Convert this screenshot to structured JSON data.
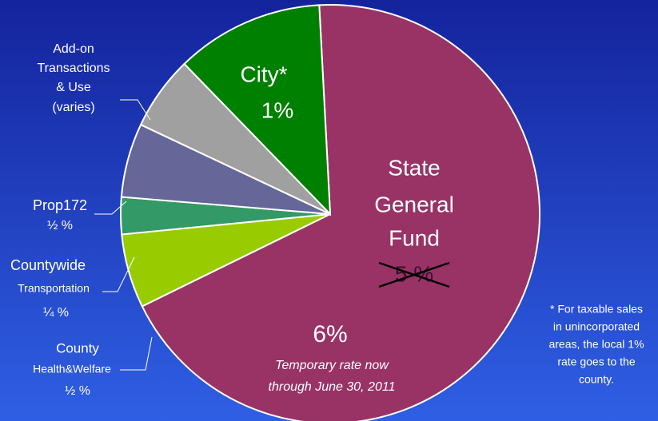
{
  "chart_data": {
    "type": "pie",
    "slices": [
      {
        "name_lines": [
          "State",
          "General",
          "Fund"
        ],
        "value": 6,
        "value_label": "6%",
        "struck_label": "5 %",
        "note_lines": [
          "Temporary rate now",
          "through June 30, 2011"
        ],
        "color": "#993366"
      },
      {
        "name_lines": [
          "County",
          "Health&Welfare"
        ],
        "value": 0.5,
        "value_label": "½ %",
        "color": "#99cc00"
      },
      {
        "name_lines": [
          "Countywide",
          "Transportation"
        ],
        "value": 0.25,
        "value_label": "¼ %",
        "color": "#339966"
      },
      {
        "name_lines": [
          "Prop172"
        ],
        "value": 0.5,
        "value_label": "½ %",
        "color": "#666699"
      },
      {
        "name_lines": [
          "Add-on",
          "Transactions",
          "& Use"
        ],
        "value": 0.5,
        "label_note": "(varies)",
        "color": "#a0a0a0"
      },
      {
        "name_lines": [
          "City*"
        ],
        "value": 1,
        "value_label": "1%",
        "color": "#008000"
      }
    ],
    "footnote_lines": [
      "* For taxable sales",
      "in unincorporated",
      "areas, the local 1%",
      "rate goes to the",
      "county."
    ]
  }
}
